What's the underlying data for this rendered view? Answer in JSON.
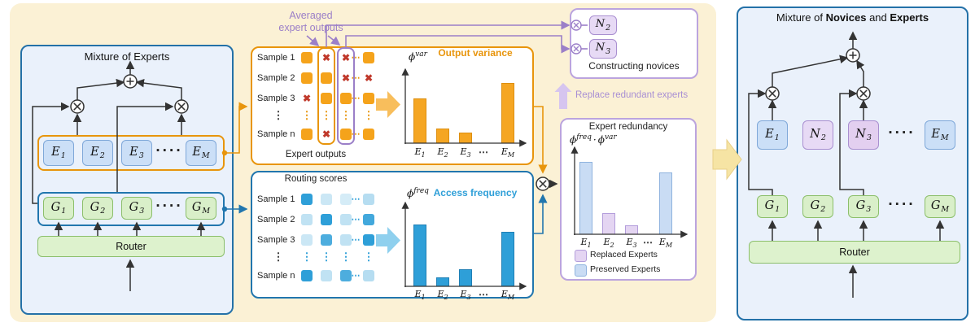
{
  "glyphs": {
    "hdots": "⋯",
    "vdots": "⋮",
    "row_dots": "····",
    "x_mark": "✖"
  },
  "left_panel": {
    "title": "Mixture of Experts",
    "experts": [
      {
        "base": "E",
        "sub": "1"
      },
      {
        "base": "E",
        "sub": "2"
      },
      {
        "base": "E",
        "sub": "3"
      },
      {
        "base": "E",
        "sub": "M"
      }
    ],
    "gates": [
      {
        "base": "G",
        "sub": "1"
      },
      {
        "base": "G",
        "sub": "2"
      },
      {
        "base": "G",
        "sub": "3"
      },
      {
        "base": "G",
        "sub": "M"
      }
    ],
    "router": "Router"
  },
  "middle": {
    "averaged_label_line1": "Averaged",
    "averaged_label_line2": "expert outputs",
    "replace_label": "Replace redundant experts",
    "expert_outputs": {
      "caption": "Expert outputs",
      "row_labels": [
        "Sample 1",
        "Sample 2",
        "Sample 3",
        "Sample n"
      ],
      "cells": [
        [
          "on",
          "x",
          "x",
          "on"
        ],
        [
          "on",
          "on",
          "x",
          "x"
        ],
        [
          "x",
          "on",
          "on",
          "on"
        ],
        [
          "on",
          "x",
          "on",
          "on"
        ]
      ]
    },
    "routing_scores": {
      "title": "Routing scores",
      "row_labels": [
        "Sample 1",
        "Sample 2",
        "Sample 3",
        "Sample n"
      ],
      "cells": [
        [
          1,
          0.25,
          0.2,
          0.35
        ],
        [
          0.3,
          1,
          0.3,
          0.9
        ],
        [
          0.25,
          0.85,
          0.3,
          1
        ],
        [
          1,
          0.3,
          0.85,
          0.35
        ]
      ]
    },
    "novices": {
      "title": "Constructing novices",
      "boxes": [
        {
          "base": "N",
          "sub": "2"
        },
        {
          "base": "N",
          "sub": "3"
        }
      ]
    }
  },
  "labels": {
    "phi_var": {
      "base": "ϕ",
      "sup": "var"
    },
    "phi_freq": {
      "base": "ϕ",
      "sup": "freq"
    },
    "phi_product": {
      "b1": "ϕ",
      "s1": "freq",
      "dot": "·",
      "b2": "ϕ",
      "s2": "var"
    }
  },
  "right_panel": {
    "title": {
      "prefix": "Mixture of ",
      "bold1": "Novices",
      "mid": " and ",
      "bold2": "Experts"
    },
    "boxes": [
      {
        "base": "E",
        "sub": "1",
        "kind": "expert"
      },
      {
        "base": "N",
        "sub": "2",
        "kind": "novice"
      },
      {
        "base": "N",
        "sub": "3",
        "kind": "novice"
      },
      {
        "base": "E",
        "sub": "M",
        "kind": "expert"
      }
    ],
    "gates": [
      {
        "base": "G",
        "sub": "1"
      },
      {
        "base": "G",
        "sub": "2"
      },
      {
        "base": "G",
        "sub": "3"
      },
      {
        "base": "G",
        "sub": "M"
      }
    ],
    "router": "Router"
  },
  "chart_data": [
    {
      "id": "variance",
      "type": "bar",
      "title": "Output variance",
      "ylabel": "ϕ^var",
      "categories": [
        [
          "E",
          "1"
        ],
        [
          "E",
          "2"
        ],
        [
          "E",
          "3"
        ],
        [
          "E",
          "M"
        ]
      ],
      "values": [
        0.6,
        0.2,
        0.14,
        0.8
      ],
      "ylim": [
        0,
        1
      ]
    },
    {
      "id": "frequency",
      "type": "bar",
      "title": "Access frequency",
      "ylabel": "ϕ^freq",
      "categories": [
        [
          "E",
          "1"
        ],
        [
          "E",
          "2"
        ],
        [
          "E",
          "3"
        ],
        [
          "E",
          "M"
        ]
      ],
      "values": [
        0.8,
        0.12,
        0.22,
        0.7
      ],
      "ylim": [
        0,
        1
      ]
    },
    {
      "id": "redundancy",
      "type": "bar",
      "title": "Expert redundancy",
      "ylabel": "ϕ^freq · ϕ^var",
      "categories": [
        [
          "E",
          "1"
        ],
        [
          "E",
          "2"
        ],
        [
          "E",
          "3"
        ],
        [
          "E",
          "M"
        ]
      ],
      "values": [
        0.82,
        0.24,
        0.1,
        0.7
      ],
      "kinds": [
        "preserved",
        "replaced",
        "replaced",
        "preserved"
      ],
      "legend": [
        {
          "label": "Replaced Experts",
          "kind": "replaced"
        },
        {
          "label": "Preserved Experts",
          "kind": "preserved"
        }
      ],
      "ylim": [
        0,
        1
      ]
    }
  ]
}
